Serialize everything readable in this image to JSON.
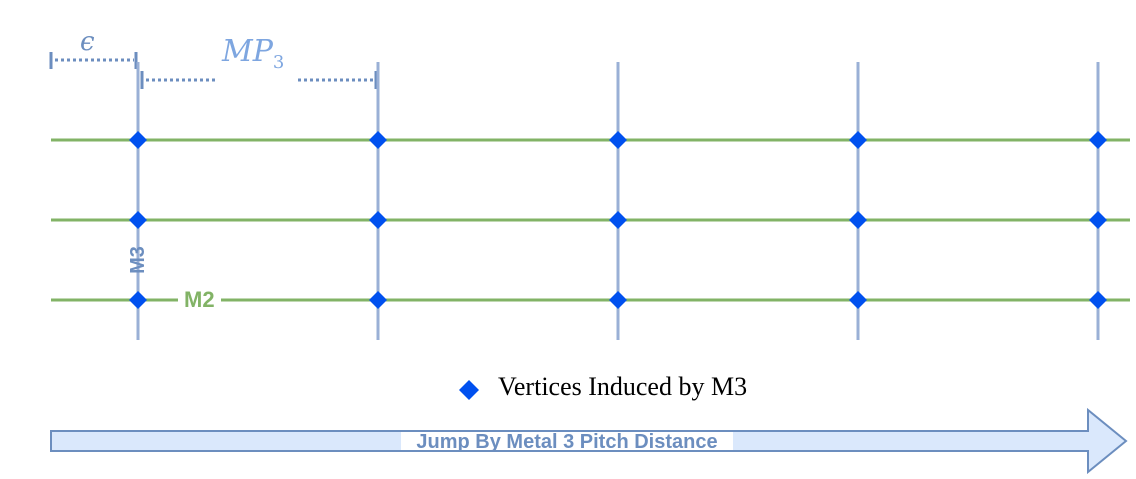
{
  "labels": {
    "epsilon": "ϵ",
    "mp_main": "MP",
    "mp_subscript": "3",
    "m3": "M3",
    "m2": "M2"
  },
  "legend": {
    "text": "Vertices Induced by M3",
    "marker_icon": "diamond-icon"
  },
  "arrow": {
    "label": "Jump By Metal 3 Pitch Distance"
  },
  "colors": {
    "m3_track": "#9ab0d6",
    "m2_track": "#82b366",
    "vertex": "#0050ef",
    "dimension": "#6c8ebf",
    "arrow_fill": "#dae8fc",
    "arrow_stroke": "#6c8ebf"
  }
}
